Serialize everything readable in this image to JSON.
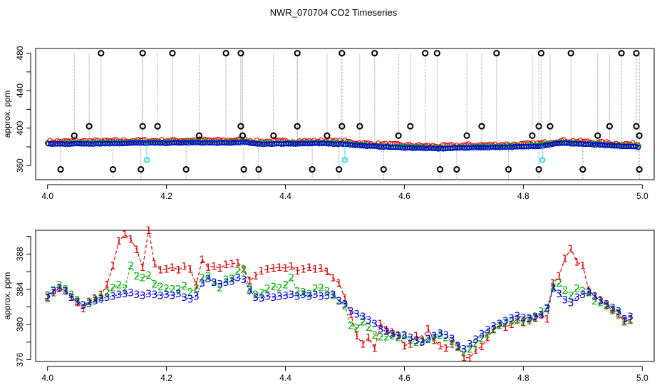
{
  "figure_title": "NWR_070704  CO2 Timeseries",
  "colors": {
    "series1": "#e00000",
    "series2": "#00b000",
    "series3": "#0000e0",
    "outlier": "#000000",
    "flagged": "#40d8d8",
    "connector": "#999999"
  },
  "chart_data": [
    {
      "type": "scatter",
      "title": "NWR_070704  CO2 Timeseries",
      "xlabel": "",
      "ylabel": "approx. ppm",
      "xlim": [
        3.98,
        5.02
      ],
      "ylim": [
        345,
        485
      ],
      "xticks": [
        4.0,
        4.2,
        4.4,
        4.6,
        4.8,
        5.0
      ],
      "xtick_labels": [
        "4.0",
        "4.2",
        "4.4",
        "4.6",
        "4.8",
        "5.0"
      ],
      "yticks": [
        360,
        400,
        440,
        480
      ],
      "ytick_labels": [
        "360",
        "400",
        "440",
        "480"
      ],
      "yminor_ticks": [
        380,
        420,
        460
      ],
      "baseline_anchors": [
        [
          4.0,
          383
        ],
        [
          4.1,
          383.5
        ],
        [
          4.15,
          384
        ],
        [
          4.2,
          384
        ],
        [
          4.25,
          384.5
        ],
        [
          4.3,
          384
        ],
        [
          4.33,
          385
        ],
        [
          4.35,
          383
        ],
        [
          4.45,
          383.5
        ],
        [
          4.5,
          383
        ],
        [
          4.53,
          381
        ],
        [
          4.6,
          379
        ],
        [
          4.66,
          378
        ],
        [
          4.7,
          379
        ],
        [
          4.8,
          380
        ],
        [
          4.83,
          381
        ],
        [
          4.86,
          384
        ],
        [
          4.9,
          383
        ],
        [
          4.95,
          381
        ],
        [
          4.99,
          380
        ]
      ],
      "outliers_high": [
        4.09,
        4.16,
        4.21,
        4.3,
        4.325,
        4.42,
        4.495,
        4.55,
        4.635,
        4.655,
        4.755,
        4.83,
        4.88,
        4.965,
        4.99
      ],
      "outliers_mid": [
        [
          4.045,
          392
        ],
        [
          4.07,
          402
        ],
        [
          4.16,
          402
        ],
        [
          4.185,
          402
        ],
        [
          4.255,
          392
        ],
        [
          4.325,
          402
        ],
        [
          4.328,
          392
        ],
        [
          4.38,
          392
        ],
        [
          4.42,
          402
        ],
        [
          4.47,
          392
        ],
        [
          4.495,
          402
        ],
        [
          4.525,
          402
        ],
        [
          4.59,
          392
        ],
        [
          4.61,
          402
        ],
        [
          4.705,
          392
        ],
        [
          4.73,
          402
        ],
        [
          4.815,
          392
        ],
        [
          4.826,
          402
        ],
        [
          4.845,
          402
        ],
        [
          4.925,
          392
        ],
        [
          4.945,
          402
        ],
        [
          4.99,
          402
        ],
        [
          4.995,
          392
        ]
      ],
      "outliers_low": [
        4.022,
        4.11,
        4.157,
        4.233,
        4.33,
        4.355,
        4.445,
        4.49,
        4.565,
        4.66,
        4.688,
        4.775,
        4.826,
        4.9,
        4.995
      ],
      "flagged": [
        [
          4.167,
          366
        ],
        [
          4.5,
          366
        ],
        [
          4.832,
          366
        ]
      ]
    },
    {
      "type": "line",
      "title": "",
      "xlabel": "",
      "ylabel": "approx. ppm",
      "xlim": [
        3.98,
        5.02
      ],
      "ylim": [
        375.8,
        390.7
      ],
      "xticks": [
        4.0,
        4.2,
        4.4,
        4.6,
        4.8,
        5.0
      ],
      "xtick_labels": [
        "4.0",
        "4.2",
        "4.4",
        "4.6",
        "4.8",
        "5.0"
      ],
      "yticks": [
        376,
        380,
        384,
        388
      ],
      "ytick_labels": [
        "376",
        "380",
        "384",
        "388"
      ],
      "yminor_ticks": [
        378,
        382,
        386,
        390
      ],
      "x_start": 4.0,
      "x_step": 0.01,
      "series": [
        {
          "name": "1",
          "marker": "1",
          "values": [
            383,
            383.6,
            384.2,
            383.8,
            383.1,
            382.5,
            381.8,
            382.6,
            383,
            383.4,
            384.5,
            386.7,
            389.5,
            390.2,
            389.7,
            388.5,
            386.5,
            390.7,
            386.9,
            386.2,
            386.3,
            386.5,
            386.2,
            386.6,
            386.3,
            384.5,
            387.4,
            386.5,
            386.6,
            386.4,
            386.8,
            386.9,
            387,
            386.3,
            385,
            385.5,
            386.1,
            386.3,
            386.4,
            386.5,
            386.4,
            386.6,
            386.1,
            386.3,
            386.5,
            386.3,
            386.4,
            386,
            385.3,
            384.7,
            383,
            381.2,
            378.7,
            377.8,
            378.5,
            377.3,
            380.1,
            379.4,
            379.1,
            378.8,
            377.6,
            377.8,
            378.7,
            378.3,
            379.5,
            378.2,
            377.6,
            377.3,
            377.8,
            377.5,
            376.3,
            376.2,
            377.1,
            377.5,
            378.5,
            379.5,
            379.9,
            379.7,
            380,
            380.6,
            380.2,
            380.4,
            380.7,
            381.1,
            380.6,
            384.7,
            385.5,
            387.5,
            388.6,
            387.1,
            386.7,
            383.9,
            383.2,
            382.8,
            382.2,
            381.6,
            381.1,
            380.4,
            380.5
          ]
        },
        {
          "name": "2",
          "marker": "2",
          "values": [
            383.1,
            383.9,
            384.5,
            384,
            383.4,
            382.8,
            382.2,
            382.6,
            382.9,
            383.1,
            383.6,
            384.2,
            384.5,
            384.1,
            386.7,
            385.5,
            385.3,
            385.6,
            384.6,
            384.3,
            384.1,
            384,
            384,
            384.4,
            383.7,
            384.1,
            385.3,
            385.5,
            384.8,
            384.2,
            385.1,
            385.2,
            386.1,
            386.3,
            384.1,
            383.4,
            383.6,
            384.1,
            384.3,
            384.2,
            384.5,
            385.3,
            383.8,
            383.7,
            383.5,
            384.1,
            384.2,
            383.8,
            383.3,
            382.7,
            382.1,
            379.9,
            379.6,
            380.3,
            379.7,
            378.8,
            378.6,
            378.6,
            378.7,
            378.5,
            378.7,
            378.2,
            378,
            378.1,
            378.3,
            378.5,
            378.8,
            378.5,
            378.1,
            377.4,
            376.8,
            377.2,
            377.9,
            378.4,
            378.9,
            379.4,
            379.9,
            380.2,
            380.4,
            380.5,
            380.3,
            380.6,
            380.8,
            381.5,
            381.9,
            384.3,
            384.7,
            383.9,
            383.3,
            384.1,
            383.8,
            383.6,
            382.7,
            382.5,
            382.1,
            381.7,
            381.3,
            380.3,
            380.6
          ]
        },
        {
          "name": "3",
          "marker": "3",
          "values": [
            383.3,
            383.8,
            384.1,
            383.8,
            383.1,
            382.6,
            382.2,
            382.4,
            382.7,
            382.9,
            383.1,
            383.2,
            383.4,
            383.5,
            383.6,
            383.4,
            383.3,
            383.5,
            383.4,
            383.3,
            383.4,
            383.3,
            383.5,
            383.1,
            382.9,
            383.2,
            384.7,
            385.2,
            384.8,
            384.6,
            384.8,
            384.9,
            385.3,
            385.1,
            383.9,
            383.1,
            383,
            383.2,
            383.1,
            383.2,
            383.3,
            383.4,
            383.2,
            383.4,
            383.2,
            383.4,
            383.2,
            383.3,
            383.4,
            382.7,
            382.3,
            381.5,
            381.2,
            380.9,
            380.5,
            380.1,
            379.5,
            379.2,
            378.9,
            378.7,
            378.8,
            378.5,
            378.2,
            378,
            378.4,
            378.7,
            379,
            378.8,
            378.4,
            377.6,
            377.2,
            377.8,
            378.3,
            378.9,
            379.4,
            379.8,
            380.1,
            380.4,
            380.7,
            381,
            380.8,
            380.7,
            380.9,
            381.1,
            381.8,
            384.1,
            383.5,
            382.8,
            382.5,
            383.1,
            383.4,
            383.7,
            383.2,
            382.7,
            382.3,
            381.9,
            381.5,
            380.6,
            380.9
          ]
        }
      ]
    }
  ]
}
